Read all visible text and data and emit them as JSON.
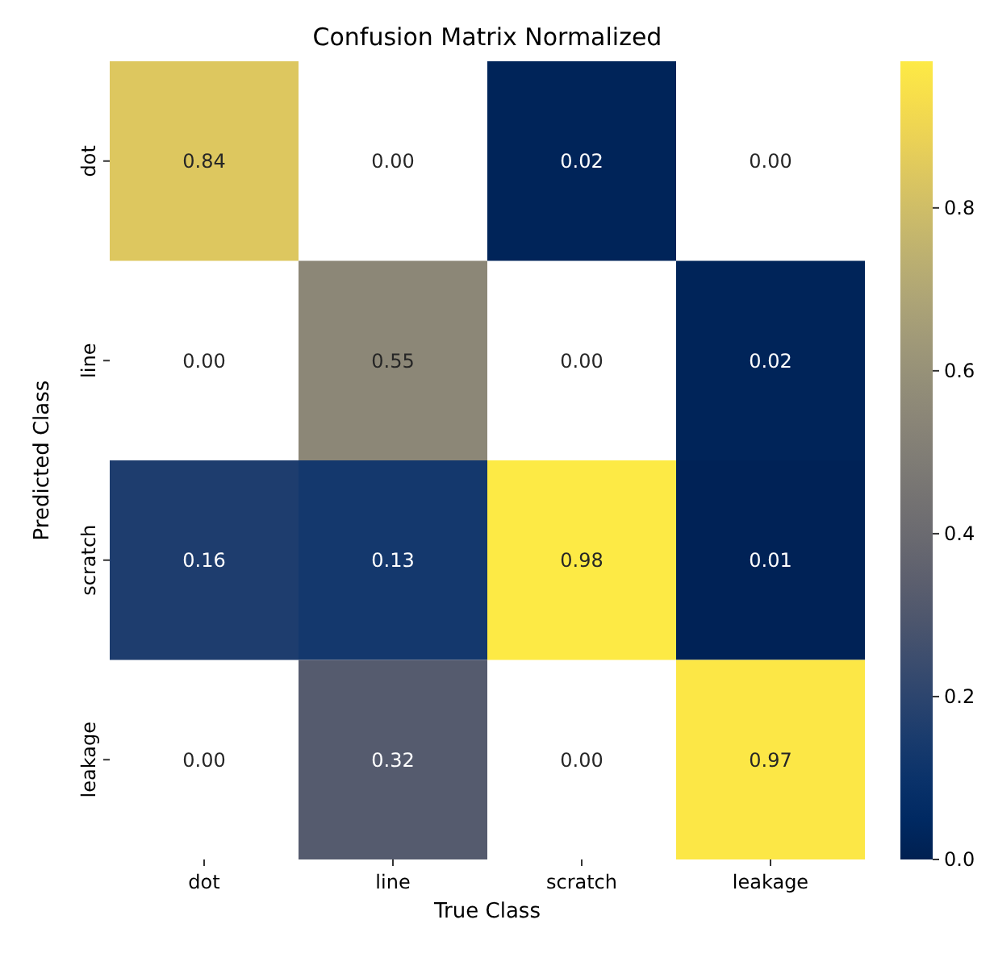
{
  "chart_data": {
    "type": "heatmap",
    "title": "Confusion Matrix Normalized",
    "xlabel": "True Class",
    "ylabel": "Predicted Class",
    "categories": [
      "dot",
      "line",
      "scratch",
      "leakage"
    ],
    "y_categories": [
      "dot",
      "line",
      "scratch",
      "leakage"
    ],
    "cells": [
      [
        0.84,
        null,
        0.02,
        null
      ],
      [
        null,
        0.55,
        null,
        0.02
      ],
      [
        0.16,
        0.13,
        0.98,
        0.01
      ],
      [
        null,
        0.32,
        null,
        0.97
      ]
    ],
    "cell_labels": [
      [
        "0.84",
        "0.00",
        "0.02",
        "0.00"
      ],
      [
        "0.00",
        "0.55",
        "0.00",
        "0.02"
      ],
      [
        "0.16",
        "0.13",
        "0.98",
        "0.01"
      ],
      [
        "0.00",
        "0.32",
        "0.00",
        "0.97"
      ]
    ],
    "clim": [
      0,
      0.98
    ],
    "cticks": [
      {
        "value": 0,
        "label": "0.0"
      },
      {
        "value": 0.2,
        "label": "0.2"
      },
      {
        "value": 0.4,
        "label": "0.4"
      },
      {
        "value": 0.6,
        "label": "0.6"
      },
      {
        "value": 0.8,
        "label": "0.8"
      }
    ]
  }
}
